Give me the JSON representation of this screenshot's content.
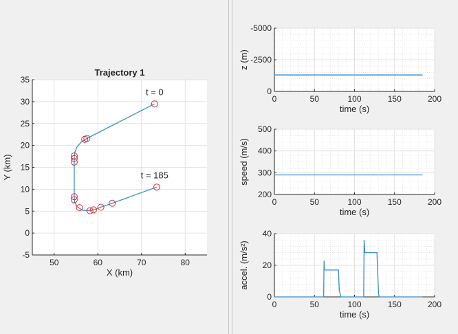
{
  "chart_data": [
    {
      "type": "line",
      "title": "Trajectory 1",
      "xlabel": "X (km)",
      "ylabel": "Y (km)",
      "xlim": [
        45,
        85
      ],
      "ylim": [
        -5,
        35
      ],
      "xticks": [
        50,
        60,
        70,
        80
      ],
      "yticks": [
        -5,
        0,
        5,
        10,
        15,
        20,
        25,
        30,
        35
      ],
      "grid": true,
      "series": [
        {
          "name": "path",
          "color": "#3a8cc8",
          "x": [
            73,
            57.5,
            56.2,
            55.2,
            54.7,
            54.6,
            54.6,
            54.7,
            55.3,
            56.5,
            58.2,
            59,
            60.7,
            63.3,
            73.5
          ],
          "y": [
            29.5,
            21.6,
            20.8,
            19.6,
            18.3,
            17.4,
            8.3,
            7,
            6,
            5.2,
            5.1,
            5.3,
            5.9,
            6.8,
            10.5
          ]
        },
        {
          "name": "waypoints",
          "marker": "circle",
          "color": "#e8262a",
          "x": [
            73,
            57.5,
            57,
            54.6,
            54.6,
            54.6,
            54.6,
            54.6,
            55.8,
            58.2,
            59,
            60.7,
            63.3,
            73.5
          ],
          "y": [
            29.5,
            21.6,
            21.4,
            17.6,
            17,
            16.2,
            8.3,
            7.6,
            5.8,
            5.1,
            5.3,
            5.9,
            6.8,
            10.5
          ]
        }
      ],
      "annotations": [
        {
          "text": "t = 0",
          "x": 73,
          "y": 31.5
        },
        {
          "text": "t = 185",
          "x": 73,
          "y": 12.5
        }
      ]
    },
    {
      "type": "line",
      "title": "",
      "xlabel": "time (s)",
      "ylabel": "z (m)",
      "xlim": [
        0,
        200
      ],
      "ylim": [
        -5000,
        0
      ],
      "y_reversed": true,
      "xticks": [
        0,
        50,
        100,
        150,
        200
      ],
      "yticks": [
        -5000,
        -2500,
        0
      ],
      "grid": true,
      "series": [
        {
          "name": "z",
          "color": "#3a8cc8",
          "x": [
            0,
            185
          ],
          "y": [
            -1300,
            -1300
          ]
        }
      ]
    },
    {
      "type": "line",
      "title": "",
      "xlabel": "time (s)",
      "ylabel": "speed (m/s)",
      "xlim": [
        0,
        200
      ],
      "ylim": [
        200,
        500
      ],
      "xticks": [
        0,
        50,
        100,
        150,
        200
      ],
      "yticks": [
        200,
        300,
        400,
        500
      ],
      "grid": true,
      "series": [
        {
          "name": "speed",
          "color": "#3a8cc8",
          "x": [
            0,
            185
          ],
          "y": [
            290,
            290
          ]
        }
      ]
    },
    {
      "type": "line",
      "title": "",
      "xlabel": "time (s)",
      "ylabel": "accel. (m/s²)",
      "xlim": [
        0,
        200
      ],
      "ylim": [
        0,
        40
      ],
      "xticks": [
        0,
        50,
        100,
        150,
        200
      ],
      "yticks": [
        0,
        20,
        40
      ],
      "grid": true,
      "series": [
        {
          "name": "accel",
          "color": "#3a8cc8",
          "x": [
            0,
            61.5,
            62,
            62.5,
            63,
            80,
            81,
            83,
            110,
            111.5,
            112,
            113,
            128,
            130,
            131,
            185
          ],
          "y": [
            0,
            0,
            23,
            17.5,
            17,
            17,
            4,
            0,
            0,
            0,
            36,
            28,
            28,
            2,
            0,
            0
          ]
        }
      ]
    }
  ]
}
